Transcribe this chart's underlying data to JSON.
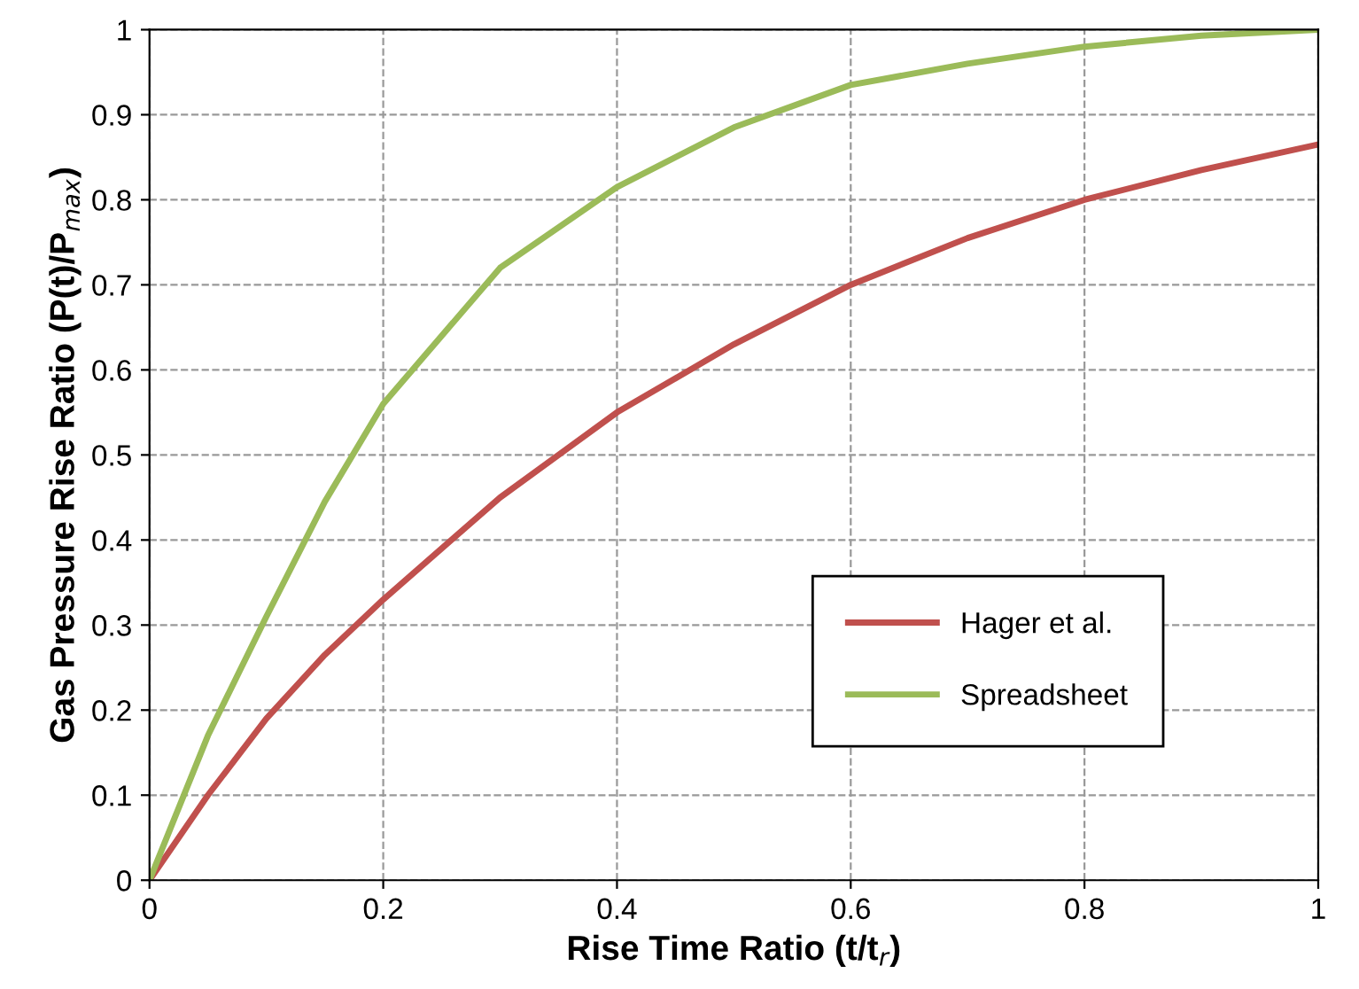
{
  "chart_data": {
    "type": "line",
    "xlabel": "Rise Time Ratio (t/t$_{r}$)",
    "ylabel": "Gas Pressure Rise Ratio (P(t)/P$_{max}$)",
    "x": [
      0,
      0.05,
      0.1,
      0.15,
      0.2,
      0.3,
      0.4,
      0.5,
      0.6,
      0.7,
      0.8,
      0.9,
      1.0
    ],
    "series": [
      {
        "name": "Hager et al.",
        "color": "#c0504d",
        "values": [
          0,
          0.1,
          0.19,
          0.265,
          0.33,
          0.45,
          0.55,
          0.63,
          0.7,
          0.755,
          0.8,
          0.835,
          0.865
        ]
      },
      {
        "name": "Spreadsheet",
        "color": "#9bbb59",
        "values": [
          0,
          0.17,
          0.31,
          0.445,
          0.56,
          0.72,
          0.815,
          0.885,
          0.935,
          0.96,
          0.98,
          0.993,
          1.0
        ]
      }
    ],
    "xlim": [
      0,
      1
    ],
    "ylim": [
      0,
      1
    ],
    "xticks": [
      0,
      0.2,
      0.4,
      0.6,
      0.8,
      1
    ],
    "yticks": [
      0,
      0.1,
      0.2,
      0.3,
      0.4,
      0.5,
      0.6,
      0.7,
      0.8,
      0.9,
      1
    ],
    "grid": true,
    "legend": "lower right",
    "marker": "none",
    "line_style": "solid"
  }
}
